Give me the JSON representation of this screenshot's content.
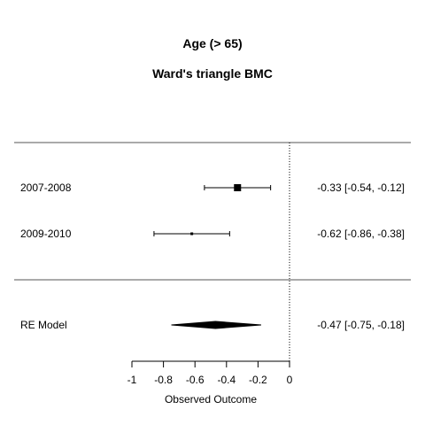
{
  "chart_data": {
    "type": "forest",
    "title": "Age (> 65)",
    "subtitle": "Ward's triangle BMC",
    "xlabel": "Observed Outcome",
    "xlim": [
      -1,
      0
    ],
    "xticks": [
      -1,
      -0.8,
      -0.6,
      -0.4,
      -0.2,
      0
    ],
    "xtick_labels": [
      "-1",
      "-0.8",
      "-0.6",
      "-0.4",
      "-0.2",
      "0"
    ],
    "reference_line": 0,
    "studies": [
      {
        "label": "2007-2008",
        "estimate": -0.33,
        "ci_low": -0.54,
        "ci_high": -0.12,
        "summary_text": "-0.33 [-0.54, -0.12]",
        "marker_size": "large"
      },
      {
        "label": "2009-2010",
        "estimate": -0.62,
        "ci_low": -0.86,
        "ci_high": -0.38,
        "summary_text": "-0.62 [-0.86, -0.38]",
        "marker_size": "small"
      }
    ],
    "pooled": {
      "label": "RE Model",
      "estimate": -0.47,
      "ci_low": -0.75,
      "ci_high": -0.18,
      "summary_text": "-0.47 [-0.75, -0.18]"
    }
  },
  "colors": {
    "ink": "#000000",
    "background": "#ffffff"
  }
}
